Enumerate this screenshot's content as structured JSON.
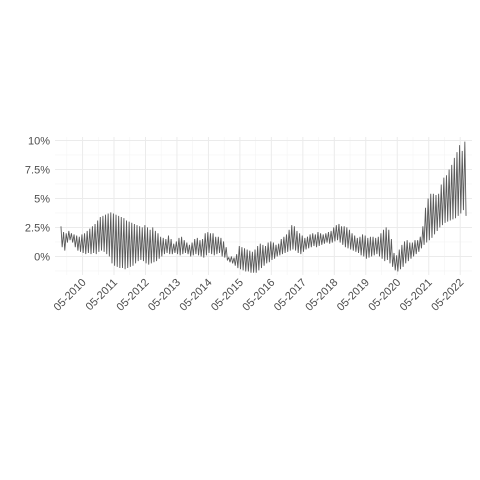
{
  "chart_data": {
    "type": "line",
    "title": "",
    "xlabel": "",
    "ylabel": "",
    "grid": true,
    "legend": "none",
    "xlim": [
      "2009-08",
      "2022-04"
    ],
    "ylim": [
      -1.6,
      10.3
    ],
    "y_ticks": [
      {
        "value": 0,
        "label": "0%"
      },
      {
        "value": 2.5,
        "label": "2.5%"
      },
      {
        "value": 5,
        "label": "5%"
      },
      {
        "value": 7.5,
        "label": "7.5%"
      },
      {
        "value": 10,
        "label": "10%"
      }
    ],
    "x_ticks": [
      {
        "value": "2010-05",
        "label": "05-2010"
      },
      {
        "value": "2011-05",
        "label": "05-2011"
      },
      {
        "value": "2012-05",
        "label": "05-2012"
      },
      {
        "value": "2013-05",
        "label": "05-2013"
      },
      {
        "value": "2014-05",
        "label": "05-2014"
      },
      {
        "value": "2015-05",
        "label": "05-2015"
      },
      {
        "value": "2016-05",
        "label": "05-2016"
      },
      {
        "value": "2017-05",
        "label": "05-2017"
      },
      {
        "value": "2018-05",
        "label": "05-2018"
      },
      {
        "value": "2019-05",
        "label": "05-2019"
      },
      {
        "value": "2020-05",
        "label": "05-2020"
      },
      {
        "value": "2021-05",
        "label": "05-2021"
      },
      {
        "value": "2022-05",
        "label": "05-2022"
      }
    ],
    "series": [
      {
        "color": "#5a5a5a",
        "points": [
          {
            "x": "2009-09",
            "high": 2.6,
            "low": 0.8
          },
          {
            "x": "2009-10",
            "high": 2.1,
            "low": 0.5
          },
          {
            "x": "2009-11",
            "high": 2.0,
            "low": 1.2
          },
          {
            "x": "2009-12",
            "high": 2.2,
            "low": 1.4
          },
          {
            "x": "2010-01",
            "high": 2.0,
            "low": 1.2
          },
          {
            "x": "2010-02",
            "high": 1.9,
            "low": 0.8
          },
          {
            "x": "2010-03",
            "high": 1.8,
            "low": 0.5
          },
          {
            "x": "2010-04",
            "high": 1.7,
            "low": 0.4
          },
          {
            "x": "2010-05",
            "high": 1.9,
            "low": 0.3
          },
          {
            "x": "2010-06",
            "high": 2.0,
            "low": 0.2
          },
          {
            "x": "2010-07",
            "high": 2.2,
            "low": 0.3
          },
          {
            "x": "2010-08",
            "high": 2.4,
            "low": 0.2
          },
          {
            "x": "2010-09",
            "high": 2.6,
            "low": 0.3
          },
          {
            "x": "2010-10",
            "high": 2.8,
            "low": 0.2
          },
          {
            "x": "2010-11",
            "high": 3.1,
            "low": 0.4
          },
          {
            "x": "2010-12",
            "high": 3.4,
            "low": 0.5
          },
          {
            "x": "2011-01",
            "high": 3.5,
            "low": 0.4
          },
          {
            "x": "2011-02",
            "high": 3.6,
            "low": 0.2
          },
          {
            "x": "2011-03",
            "high": 3.7,
            "low": 0.0
          },
          {
            "x": "2011-04",
            "high": 3.8,
            "low": -0.6
          },
          {
            "x": "2011-05",
            "high": 3.7,
            "low": -0.8
          },
          {
            "x": "2011-06",
            "high": 3.6,
            "low": -0.9
          },
          {
            "x": "2011-07",
            "high": 3.5,
            "low": -1.0
          },
          {
            "x": "2011-08",
            "high": 3.4,
            "low": -1.0
          },
          {
            "x": "2011-09",
            "high": 3.3,
            "low": -1.1
          },
          {
            "x": "2011-10",
            "high": 3.1,
            "low": -1.0
          },
          {
            "x": "2011-11",
            "high": 3.0,
            "low": -0.9
          },
          {
            "x": "2011-12",
            "high": 2.9,
            "low": -0.8
          },
          {
            "x": "2012-01",
            "high": 2.8,
            "low": -0.6
          },
          {
            "x": "2012-02",
            "high": 2.7,
            "low": -0.4
          },
          {
            "x": "2012-03",
            "high": 2.6,
            "low": -0.3
          },
          {
            "x": "2012-04",
            "high": 2.5,
            "low": -0.4
          },
          {
            "x": "2012-05",
            "high": 2.7,
            "low": -0.6
          },
          {
            "x": "2012-06",
            "high": 2.5,
            "low": -0.7
          },
          {
            "x": "2012-07",
            "high": 2.3,
            "low": -0.6
          },
          {
            "x": "2012-08",
            "high": 2.5,
            "low": -0.5
          },
          {
            "x": "2012-09",
            "high": 2.2,
            "low": -0.4
          },
          {
            "x": "2012-10",
            "high": 2.0,
            "low": -0.2
          },
          {
            "x": "2012-11",
            "high": 1.7,
            "low": 0.0
          },
          {
            "x": "2012-12",
            "high": 1.6,
            "low": 0.2
          },
          {
            "x": "2013-01",
            "high": 1.5,
            "low": 0.3
          },
          {
            "x": "2013-02",
            "high": 1.8,
            "low": 0.2
          },
          {
            "x": "2013-03",
            "high": 1.5,
            "low": 0.2
          },
          {
            "x": "2013-04",
            "high": 1.1,
            "low": 0.3
          },
          {
            "x": "2013-05",
            "high": 1.3,
            "low": 0.2
          },
          {
            "x": "2013-06",
            "high": 1.6,
            "low": 0.1
          },
          {
            "x": "2013-07",
            "high": 1.7,
            "low": 0.2
          },
          {
            "x": "2013-08",
            "high": 1.4,
            "low": 0.3
          },
          {
            "x": "2013-09",
            "high": 1.2,
            "low": 0.2
          },
          {
            "x": "2013-10",
            "high": 1.0,
            "low": 0.0
          },
          {
            "x": "2013-11",
            "high": 1.2,
            "low": 0.1
          },
          {
            "x": "2013-12",
            "high": 1.5,
            "low": 0.2
          },
          {
            "x": "2014-01",
            "high": 1.6,
            "low": 0.1
          },
          {
            "x": "2014-02",
            "high": 1.4,
            "low": 0.0
          },
          {
            "x": "2014-03",
            "high": 1.5,
            "low": -0.1
          },
          {
            "x": "2014-04",
            "high": 2.0,
            "low": 0.1
          },
          {
            "x": "2014-05",
            "high": 2.1,
            "low": 0.3
          },
          {
            "x": "2014-06",
            "high": 2.0,
            "low": 0.2
          },
          {
            "x": "2014-07",
            "high": 2.0,
            "low": 0.1
          },
          {
            "x": "2014-08",
            "high": 1.7,
            "low": 0.2
          },
          {
            "x": "2014-09",
            "high": 1.7,
            "low": 0.3
          },
          {
            "x": "2014-10",
            "high": 1.6,
            "low": 0.0
          },
          {
            "x": "2014-11",
            "high": 1.3,
            "low": -0.1
          },
          {
            "x": "2014-12",
            "high": 0.8,
            "low": -0.3
          },
          {
            "x": "2015-01",
            "high": -0.1,
            "low": -0.5
          },
          {
            "x": "2015-02",
            "high": 0.0,
            "low": -0.6
          },
          {
            "x": "2015-03",
            "high": -0.1,
            "low": -0.8
          },
          {
            "x": "2015-04",
            "high": 0.2,
            "low": -1.0
          },
          {
            "x": "2015-05",
            "high": 0.9,
            "low": -1.1
          },
          {
            "x": "2015-06",
            "high": 0.8,
            "low": -1.2
          },
          {
            "x": "2015-07",
            "high": 0.7,
            "low": -1.3
          },
          {
            "x": "2015-08",
            "high": 0.6,
            "low": -1.3
          },
          {
            "x": "2015-09",
            "high": 0.5,
            "low": -1.4
          },
          {
            "x": "2015-10",
            "high": 0.4,
            "low": -1.4
          },
          {
            "x": "2015-11",
            "high": 0.6,
            "low": -1.4
          },
          {
            "x": "2015-12",
            "high": 0.9,
            "low": -1.2
          },
          {
            "x": "2016-01",
            "high": 1.1,
            "low": -1.0
          },
          {
            "x": "2016-02",
            "high": 1.0,
            "low": -0.8
          },
          {
            "x": "2016-03",
            "high": 0.9,
            "low": -0.6
          },
          {
            "x": "2016-04",
            "high": 1.2,
            "low": -0.5
          },
          {
            "x": "2016-05",
            "high": 1.3,
            "low": -0.3
          },
          {
            "x": "2016-06",
            "high": 1.2,
            "low": -0.2
          },
          {
            "x": "2016-07",
            "high": 1.0,
            "low": 0.0
          },
          {
            "x": "2016-08",
            "high": 1.1,
            "low": 0.1
          },
          {
            "x": "2016-09",
            "high": 1.5,
            "low": 0.2
          },
          {
            "x": "2016-10",
            "high": 1.7,
            "low": 0.3
          },
          {
            "x": "2016-11",
            "high": 1.9,
            "low": 0.4
          },
          {
            "x": "2016-12",
            "high": 2.3,
            "low": 0.5
          },
          {
            "x": "2017-01",
            "high": 2.7,
            "low": 0.6
          },
          {
            "x": "2017-02",
            "high": 2.6,
            "low": 0.5
          },
          {
            "x": "2017-03",
            "high": 2.2,
            "low": 0.3
          },
          {
            "x": "2017-04",
            "high": 2.0,
            "low": 0.2
          },
          {
            "x": "2017-05",
            "high": 1.8,
            "low": 0.4
          },
          {
            "x": "2017-06",
            "high": 1.6,
            "low": 0.6
          },
          {
            "x": "2017-07",
            "high": 1.7,
            "low": 0.7
          },
          {
            "x": "2017-08",
            "high": 1.9,
            "low": 0.8
          },
          {
            "x": "2017-09",
            "high": 2.0,
            "low": 0.9
          },
          {
            "x": "2017-10",
            "high": 1.9,
            "low": 0.8
          },
          {
            "x": "2017-11",
            "high": 2.1,
            "low": 0.9
          },
          {
            "x": "2017-12",
            "high": 2.0,
            "low": 1.0
          },
          {
            "x": "2018-01",
            "high": 1.9,
            "low": 1.1
          },
          {
            "x": "2018-02",
            "high": 2.0,
            "low": 1.2
          },
          {
            "x": "2018-03",
            "high": 2.1,
            "low": 1.1
          },
          {
            "x": "2018-04",
            "high": 2.2,
            "low": 1.2
          },
          {
            "x": "2018-05",
            "high": 2.5,
            "low": 1.3
          },
          {
            "x": "2018-06",
            "high": 2.7,
            "low": 1.4
          },
          {
            "x": "2018-07",
            "high": 2.8,
            "low": 1.2
          },
          {
            "x": "2018-08",
            "high": 2.6,
            "low": 1.0
          },
          {
            "x": "2018-09",
            "high": 2.6,
            "low": 0.8
          },
          {
            "x": "2018-10",
            "high": 2.5,
            "low": 0.7
          },
          {
            "x": "2018-11",
            "high": 2.3,
            "low": 0.6
          },
          {
            "x": "2018-12",
            "high": 2.0,
            "low": 0.5
          },
          {
            "x": "2019-01",
            "high": 1.8,
            "low": 0.4
          },
          {
            "x": "2019-02",
            "high": 1.6,
            "low": 0.3
          },
          {
            "x": "2019-03",
            "high": 1.7,
            "low": 0.1
          },
          {
            "x": "2019-04",
            "high": 1.9,
            "low": 0.0
          },
          {
            "x": "2019-05",
            "high": 1.8,
            "low": -0.2
          },
          {
            "x": "2019-06",
            "high": 1.6,
            "low": -0.1
          },
          {
            "x": "2019-07",
            "high": 1.7,
            "low": 0.0
          },
          {
            "x": "2019-08",
            "high": 1.7,
            "low": 0.1
          },
          {
            "x": "2019-09",
            "high": 1.6,
            "low": 0.2
          },
          {
            "x": "2019-10",
            "high": 1.7,
            "low": 0.0
          },
          {
            "x": "2019-11",
            "high": 2.0,
            "low": -0.2
          },
          {
            "x": "2019-12",
            "high": 2.3,
            "low": -0.4
          },
          {
            "x": "2020-01",
            "high": 2.5,
            "low": -0.3
          },
          {
            "x": "2020-02",
            "high": 2.3,
            "low": -0.6
          },
          {
            "x": "2020-03",
            "high": 1.5,
            "low": -0.9
          },
          {
            "x": "2020-04",
            "high": 0.3,
            "low": -1.2
          },
          {
            "x": "2020-05",
            "high": 0.1,
            "low": -1.3
          },
          {
            "x": "2020-06",
            "high": 0.6,
            "low": -1.1
          },
          {
            "x": "2020-07",
            "high": 1.0,
            "low": -0.9
          },
          {
            "x": "2020-08",
            "high": 1.3,
            "low": -0.6
          },
          {
            "x": "2020-09",
            "high": 1.4,
            "low": -0.4
          },
          {
            "x": "2020-10",
            "high": 1.2,
            "low": -0.2
          },
          {
            "x": "2020-11",
            "high": 1.2,
            "low": 0.0
          },
          {
            "x": "2020-12",
            "high": 1.4,
            "low": 0.2
          },
          {
            "x": "2021-01",
            "high": 1.4,
            "low": 0.4
          },
          {
            "x": "2021-02",
            "high": 1.7,
            "low": 0.7
          },
          {
            "x": "2021-03",
            "high": 2.6,
            "low": 1.0
          },
          {
            "x": "2021-04",
            "high": 4.2,
            "low": 1.2
          },
          {
            "x": "2021-05",
            "high": 5.0,
            "low": 1.4
          },
          {
            "x": "2021-06",
            "high": 5.4,
            "low": 1.6
          },
          {
            "x": "2021-07",
            "high": 5.4,
            "low": 1.9
          },
          {
            "x": "2021-08",
            "high": 5.3,
            "low": 2.2
          },
          {
            "x": "2021-09",
            "high": 5.4,
            "low": 2.5
          },
          {
            "x": "2021-10",
            "high": 6.2,
            "low": 2.7
          },
          {
            "x": "2021-11",
            "high": 6.8,
            "low": 2.9
          },
          {
            "x": "2021-12",
            "high": 7.0,
            "low": 3.0
          },
          {
            "x": "2022-01",
            "high": 7.5,
            "low": 3.1
          },
          {
            "x": "2022-02",
            "high": 7.9,
            "low": 3.2
          },
          {
            "x": "2022-03",
            "high": 8.5,
            "low": 3.3
          },
          {
            "x": "2022-04",
            "high": 9.0,
            "low": 3.5
          },
          {
            "x": "2022-05",
            "high": 9.6,
            "low": 3.7
          },
          {
            "x": "2022-06",
            "high": 9.1,
            "low": 4.0
          },
          {
            "x": "2022-07",
            "high": 9.9,
            "low": 3.5
          }
        ]
      }
    ]
  }
}
